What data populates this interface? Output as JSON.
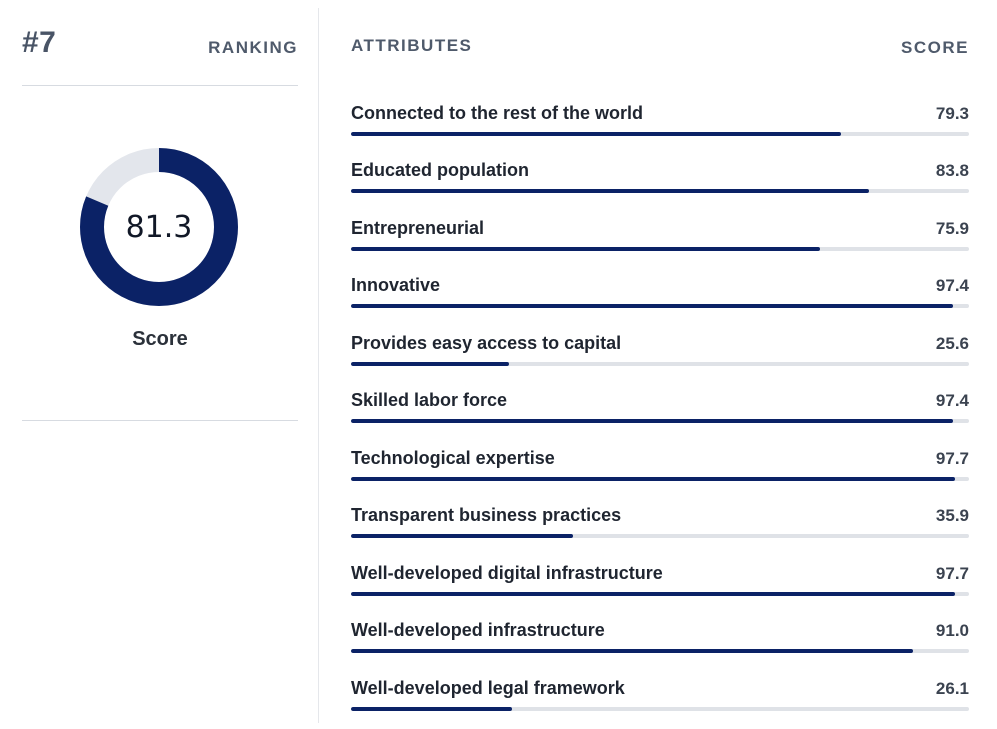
{
  "ranking": {
    "value": "#7",
    "label": "RANKING"
  },
  "overall": {
    "score": 81.3,
    "score_text": "81.3",
    "caption": "Score"
  },
  "attributes_header": "ATTRIBUTES",
  "score_header": "SCORE",
  "attributes": [
    {
      "name": "Connected to the rest of the world",
      "score_text": "79.3",
      "score": 79.3
    },
    {
      "name": "Educated population",
      "score_text": "83.8",
      "score": 83.8
    },
    {
      "name": "Entrepreneurial",
      "score_text": "75.9",
      "score": 75.9
    },
    {
      "name": "Innovative",
      "score_text": "97.4",
      "score": 97.4
    },
    {
      "name": "Provides easy access to capital",
      "score_text": "25.6",
      "score": 25.6
    },
    {
      "name": "Skilled labor force",
      "score_text": "97.4",
      "score": 97.4
    },
    {
      "name": "Technological expertise",
      "score_text": "97.7",
      "score": 97.7
    },
    {
      "name": "Transparent business practices",
      "score_text": "35.9",
      "score": 35.9
    },
    {
      "name": "Well-developed digital infrastructure",
      "score_text": "97.7",
      "score": 97.7
    },
    {
      "name": "Well-developed infrastructure",
      "score_text": "91.0",
      "score": 91.0
    },
    {
      "name": "Well-developed legal framework",
      "score_text": "26.1",
      "score": 26.1
    }
  ],
  "colors": {
    "accent": "#0b2266",
    "track": "#dfe2e7",
    "donut_track": "#e3e6ec"
  }
}
